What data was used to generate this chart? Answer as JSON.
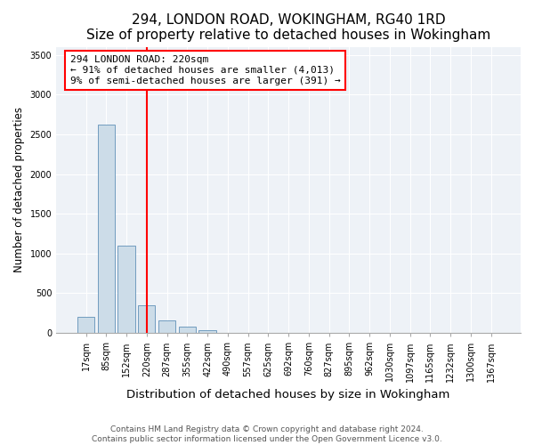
{
  "title": "294, LONDON ROAD, WOKINGHAM, RG40 1RD",
  "subtitle": "Size of property relative to detached houses in Wokingham",
  "xlabel": "Distribution of detached houses by size in Wokingham",
  "ylabel": "Number of detached properties",
  "categories": [
    "17sqm",
    "85sqm",
    "152sqm",
    "220sqm",
    "287sqm",
    "355sqm",
    "422sqm",
    "490sqm",
    "557sqm",
    "625sqm",
    "692sqm",
    "760sqm",
    "827sqm",
    "895sqm",
    "962sqm",
    "1030sqm",
    "1097sqm",
    "1165sqm",
    "1232sqm",
    "1300sqm",
    "1367sqm"
  ],
  "values": [
    200,
    2620,
    1100,
    350,
    160,
    80,
    30,
    0,
    0,
    0,
    0,
    0,
    0,
    0,
    0,
    0,
    0,
    0,
    0,
    0,
    0
  ],
  "bar_color": "#ccdce8",
  "bar_edge_color": "#6090b8",
  "vline_x_index": 3,
  "vline_color": "red",
  "annotation_text": "294 LONDON ROAD: 220sqm\n← 91% of detached houses are smaller (4,013)\n9% of semi-detached houses are larger (391) →",
  "annotation_box_color": "white",
  "annotation_box_edge": "red",
  "ylim": [
    0,
    3600
  ],
  "yticks": [
    0,
    500,
    1000,
    1500,
    2000,
    2500,
    3000,
    3500
  ],
  "footnote": "Contains HM Land Registry data © Crown copyright and database right 2024.\nContains public sector information licensed under the Open Government Licence v3.0.",
  "title_fontsize": 11,
  "subtitle_fontsize": 9.5,
  "xlabel_fontsize": 9.5,
  "ylabel_fontsize": 8.5,
  "tick_fontsize": 7,
  "footnote_fontsize": 6.5,
  "annotation_fontsize": 8,
  "background_color": "#eef2f7"
}
